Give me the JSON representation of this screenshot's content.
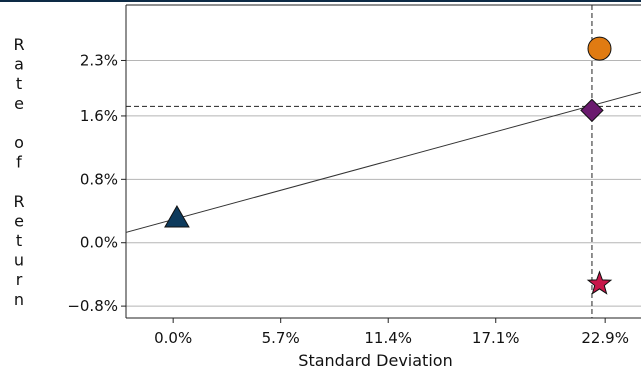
{
  "chart_data": {
    "type": "scatter",
    "title": "",
    "xlabel": "Standard Deviation",
    "ylabel": "Rate of Return",
    "xlim": [
      -2.5,
      24.8
    ],
    "ylim": [
      -0.95,
      3.0
    ],
    "x_ticks": [
      0.0,
      5.7,
      11.4,
      17.1,
      22.9
    ],
    "x_tick_labels": [
      "0.0%",
      "5.7%",
      "11.4%",
      "17.1%",
      "22.9%"
    ],
    "y_ticks": [
      -0.8,
      0.0,
      0.8,
      1.6,
      2.3
    ],
    "y_tick_labels": [
      "-0.8%",
      "0.0%",
      "0.8%",
      "1.6%",
      "2.3%"
    ],
    "grid": "horizontal",
    "points": [
      {
        "marker": "triangle",
        "color": "#0d3a5c",
        "x": 0.2,
        "y": 0.3
      },
      {
        "marker": "diamond",
        "color": "#6a1a6e",
        "x": 22.2,
        "y": 1.67
      },
      {
        "marker": "circle",
        "color": "#e07b12",
        "x": 22.6,
        "y": 2.45
      },
      {
        "marker": "star",
        "color": "#c8174a",
        "x": 22.6,
        "y": -0.52
      }
    ],
    "line": {
      "x1": -2.5,
      "y1": 0.13,
      "x2": 24.8,
      "y2": 1.9,
      "style": "solid"
    },
    "reference_lines": [
      {
        "orientation": "vertical",
        "value": 22.2,
        "style": "dashed"
      },
      {
        "orientation": "horizontal",
        "value": 1.72,
        "style": "dashed"
      }
    ]
  }
}
